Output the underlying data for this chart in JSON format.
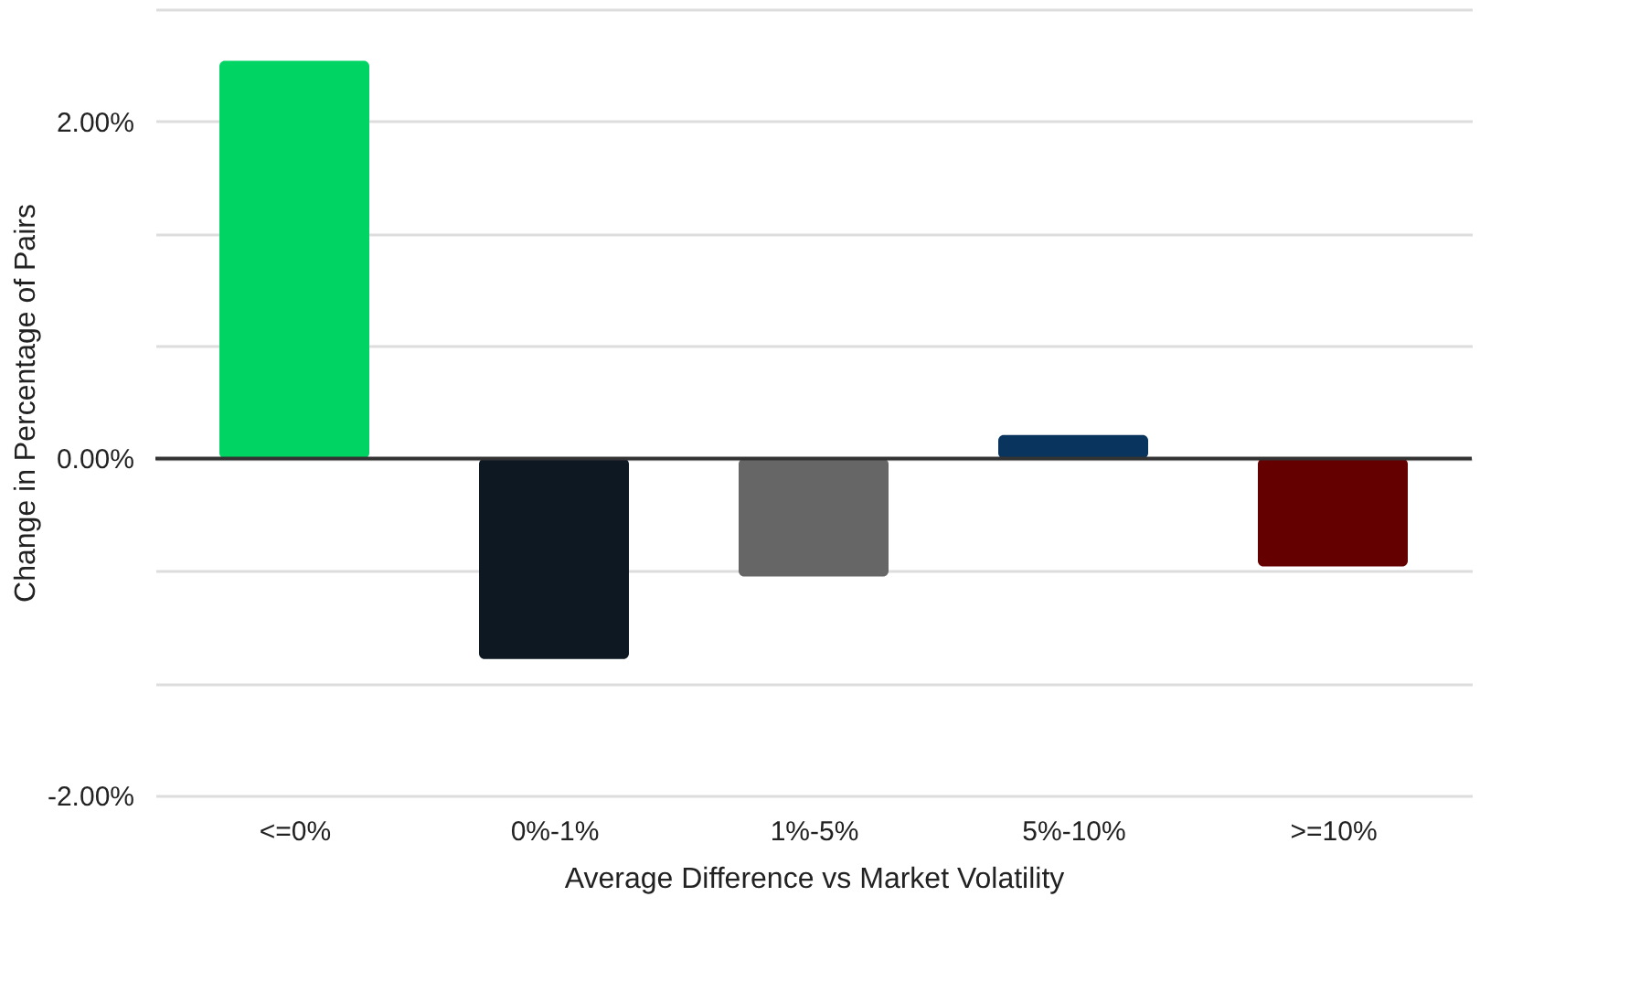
{
  "chart_data": {
    "type": "bar",
    "xlabel": "Average Difference vs Market Volatility",
    "ylabel": "Change in Percentage of Pairs",
    "categories": [
      "<=0%",
      "0%-1%",
      "1%-5%",
      "5%-10%",
      ">=10%"
    ],
    "values": [
      2.36,
      -1.19,
      -0.7,
      0.14,
      -0.64
    ],
    "colors": [
      "#00d563",
      "#0d1823",
      "#666666",
      "#08345e",
      "#650000"
    ],
    "ylim": [
      -2,
      2.667
    ],
    "yticks": [
      {
        "value": -2,
        "label": "-2.00%"
      },
      {
        "value": -1.333,
        "label": null
      },
      {
        "value": -0.667,
        "label": null
      },
      {
        "value": 0,
        "label": "0.00%"
      },
      {
        "value": 0.667,
        "label": null
      },
      {
        "value": 1.333,
        "label": null
      },
      {
        "value": 2,
        "label": "2.00%"
      },
      {
        "value": 2.667,
        "label": null
      }
    ],
    "ref_lines": [
      {
        "axis": "y",
        "value": 0,
        "color": "#333333"
      }
    ],
    "grid": "y"
  }
}
